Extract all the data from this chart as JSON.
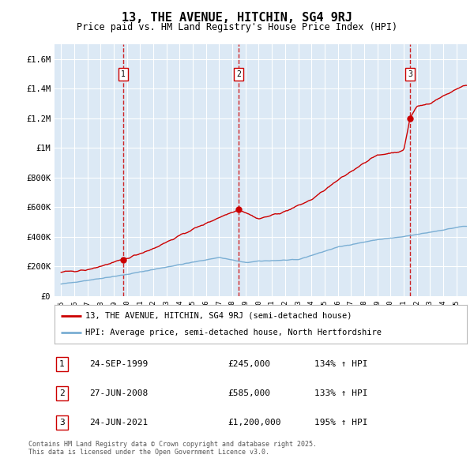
{
  "title": "13, THE AVENUE, HITCHIN, SG4 9RJ",
  "subtitle": "Price paid vs. HM Land Registry's House Price Index (HPI)",
  "legend_line1": "13, THE AVENUE, HITCHIN, SG4 9RJ (semi-detached house)",
  "legend_line2": "HPI: Average price, semi-detached house, North Hertfordshire",
  "footnote": "Contains HM Land Registry data © Crown copyright and database right 2025.\nThis data is licensed under the Open Government Licence v3.0.",
  "transactions": [
    {
      "label": "1",
      "date": "24-SEP-1999",
      "price": 245000,
      "price_str": "£245,000",
      "pct": "134%",
      "x_year": 1999.73
    },
    {
      "label": "2",
      "date": "27-JUN-2008",
      "price": 585000,
      "price_str": "£585,000",
      "pct": "133%",
      "x_year": 2008.49
    },
    {
      "label": "3",
      "date": "24-JUN-2021",
      "price": 1200000,
      "price_str": "£1,200,000",
      "pct": "195%",
      "x_year": 2021.48
    }
  ],
  "hpi_color": "#7bafd4",
  "price_color": "#cc0000",
  "marker_color": "#cc0000",
  "bg_color": "#dce9f5",
  "grid_color": "#ffffff",
  "vline_color": "#cc0000",
  "ylim": [
    0,
    1700000
  ],
  "yticks": [
    0,
    200000,
    400000,
    600000,
    800000,
    1000000,
    1200000,
    1400000,
    1600000
  ],
  "ytick_labels": [
    "£0",
    "£200K",
    "£400K",
    "£600K",
    "£800K",
    "£1M",
    "£1.2M",
    "£1.4M",
    "£1.6M"
  ],
  "xlim_start": 1994.5,
  "xlim_end": 2025.8
}
